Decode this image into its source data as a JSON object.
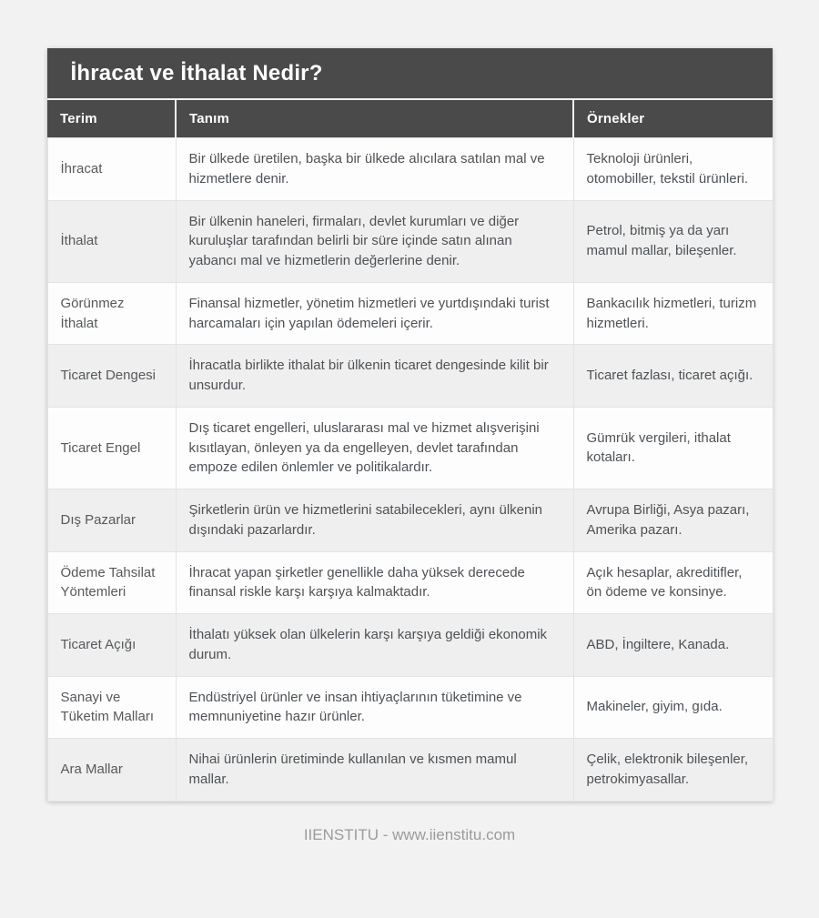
{
  "page": {
    "title": "İhracat ve İthalat Nedir?",
    "footer": "IIENSTITU - www.iienstitu.com"
  },
  "colors": {
    "header_bg": "#4a4a4a",
    "row_alt_bg": "#efefef",
    "page_bg": "#f2f2f2",
    "border": "#e3e3e3",
    "footer_text": "#9b9b9b"
  },
  "table": {
    "columns": [
      "Terim",
      "Tanım",
      "Örnekler"
    ],
    "rows": [
      {
        "term": "İhracat",
        "definition": "Bir ülkede üretilen, başka bir ülkede alıcılara satılan mal ve hizmetlere denir.",
        "examples": "Teknoloji ürünleri, otomobiller, tekstil ürünleri."
      },
      {
        "term": "İthalat",
        "definition": "Bir ülkenin haneleri, firmaları, devlet kurumları ve diğer kuruluşlar tarafından belirli bir süre içinde satın alınan yabancı mal ve hizmetlerin değerlerine denir.",
        "examples": "Petrol, bitmiş ya da yarı mamul mallar, bileşenler."
      },
      {
        "term": "Görünmez İthalat",
        "definition": "Finansal hizmetler, yönetim hizmetleri ve yurtdışındaki turist harcamaları için yapılan ödemeleri içerir.",
        "examples": "Bankacılık hizmetleri, turizm hizmetleri."
      },
      {
        "term": "Ticaret Dengesi",
        "definition": "İhracatla birlikte ithalat bir ülkenin ticaret dengesinde kilit bir unsurdur.",
        "examples": "Ticaret fazlası, ticaret açığı."
      },
      {
        "term": "Ticaret Engel",
        "definition": "Dış ticaret engelleri, uluslararası mal ve hizmet alışverişini kısıtlayan, önleyen ya da engelleyen, devlet tarafından empoze edilen önlemler ve politikalardır.",
        "examples": "Gümrük vergileri, ithalat kotaları."
      },
      {
        "term": "Dış Pazarlar",
        "definition": "Şirketlerin ürün ve hizmetlerini satabilecekleri, aynı ülkenin dışındaki pazarlardır.",
        "examples": "Avrupa Birliği, Asya pazarı, Amerika pazarı."
      },
      {
        "term": "Ödeme Tahsilat Yöntemleri",
        "definition": "İhracat yapan şirketler genellikle daha yüksek derecede finansal riskle karşı karşıya kalmaktadır.",
        "examples": "Açık hesaplar, akreditifler, ön ödeme ve konsinye."
      },
      {
        "term": "Ticaret Açığı",
        "definition": "İthalatı yüksek olan ülkelerin karşı karşıya geldiği ekonomik durum.",
        "examples": "ABD, İngiltere, Kanada."
      },
      {
        "term": "Sanayi ve Tüketim Malları",
        "definition": "Endüstriyel ürünler ve insan ihtiyaçlarının tüketimine ve memnuniyetine hazır ürünler.",
        "examples": "Makineler, giyim, gıda."
      },
      {
        "term": "Ara Mallar",
        "definition": "Nihai ürünlerin üretiminde kullanılan ve kısmen mamul mallar.",
        "examples": "Çelik, elektronik bileşenler, petrokimyasallar."
      }
    ]
  }
}
